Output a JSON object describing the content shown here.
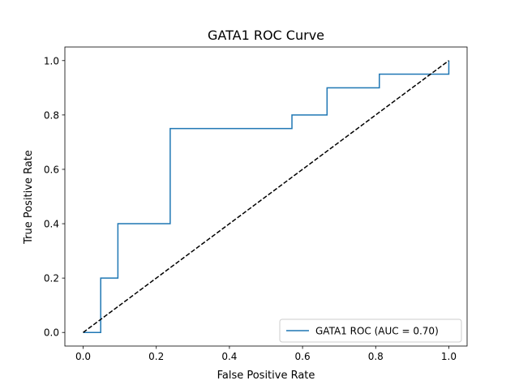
{
  "chart_data": {
    "type": "line",
    "title": "GATA1 ROC Curve",
    "xlabel": "False Positive Rate",
    "ylabel": "True Positive Rate",
    "xlim": [
      -0.05,
      1.05
    ],
    "ylim": [
      -0.05,
      1.05
    ],
    "xticks": [
      0.0,
      0.2,
      0.4,
      0.6,
      0.8,
      1.0
    ],
    "yticks": [
      0.0,
      0.2,
      0.4,
      0.6,
      0.8,
      1.0
    ],
    "xtick_labels": [
      "0.0",
      "0.2",
      "0.4",
      "0.6",
      "0.8",
      "1.0"
    ],
    "ytick_labels": [
      "0.0",
      "0.2",
      "0.4",
      "0.6",
      "0.8",
      "1.0"
    ],
    "grid": false,
    "legend_position": "lower right",
    "series": [
      {
        "name": "GATA1 ROC (AUC = 0.70)",
        "color": "#1f77b4",
        "style": "solid",
        "x": [
          0.0,
          0.048,
          0.048,
          0.095,
          0.095,
          0.238,
          0.238,
          0.571,
          0.571,
          0.667,
          0.667,
          0.81,
          0.81,
          1.0,
          1.0
        ],
        "y": [
          0.0,
          0.0,
          0.2,
          0.2,
          0.4,
          0.4,
          0.75,
          0.75,
          0.8,
          0.8,
          0.9,
          0.9,
          0.95,
          0.95,
          1.0
        ]
      },
      {
        "color": "#000000",
        "style": "dashed",
        "x": [
          0.0,
          1.0
        ],
        "y": [
          0.0,
          1.0
        ]
      }
    ]
  }
}
